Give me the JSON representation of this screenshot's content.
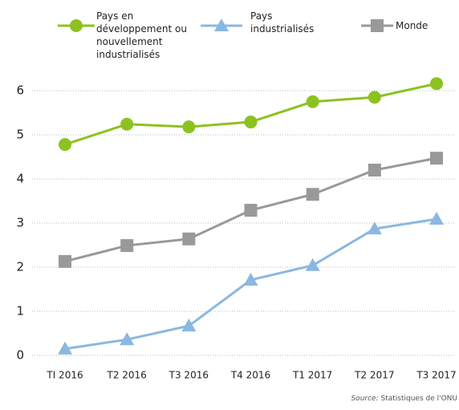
{
  "chart_data": {
    "type": "line",
    "categories": [
      "TI 2016",
      "T2 2016",
      "T3 2016",
      "T4 2016",
      "T1 2017",
      "T2 2017",
      "T3 2017"
    ],
    "series": [
      {
        "name": "Pays en développement ou nouvellement industrialisés",
        "color": "#8cc21f",
        "marker": "circle",
        "values": [
          4.78,
          5.24,
          5.18,
          5.29,
          5.75,
          5.85,
          6.16
        ]
      },
      {
        "name": "Pays industrialisés",
        "color": "#8ab8e0",
        "marker": "triangle",
        "values": [
          0.15,
          0.36,
          0.67,
          1.71,
          2.04,
          2.87,
          3.09
        ]
      },
      {
        "name": "Monde",
        "color": "#999999",
        "marker": "square",
        "values": [
          2.13,
          2.49,
          2.64,
          3.29,
          3.65,
          4.2,
          4.47
        ]
      }
    ],
    "ylim": [
      0,
      6.5
    ],
    "yticks": [
      0,
      1,
      2,
      3,
      4,
      5,
      6
    ],
    "grid": true,
    "source_label": "Source:",
    "source": "Statistiques de l'ONU"
  }
}
